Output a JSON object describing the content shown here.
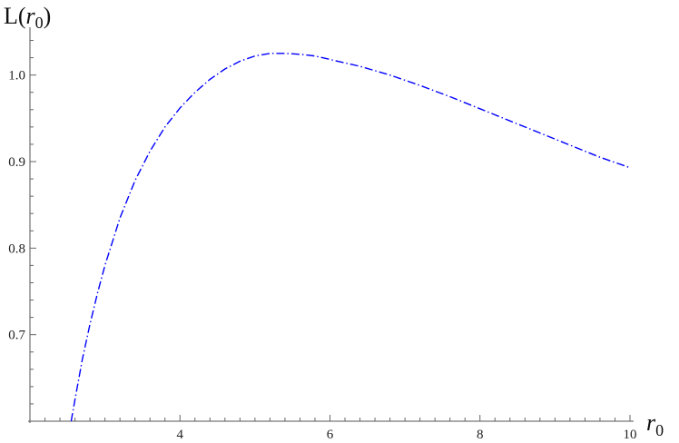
{
  "chart_data": {
    "type": "line",
    "ylabel_parts": {
      "prefix": "L(",
      "var": "r",
      "sub": "0",
      "suffix": ")"
    },
    "xlabel_parts": {
      "var": "r",
      "sub": "0"
    },
    "xlim": [
      2,
      10
    ],
    "ylim": [
      0.6,
      1.05
    ],
    "x_origin": 2,
    "y_origin": 0.6,
    "x_ticks": [
      4,
      6,
      8,
      10
    ],
    "x_ticklabels": [
      "4",
      "6",
      "8",
      "10"
    ],
    "y_ticks": [
      0.7,
      0.8,
      0.9,
      1.0
    ],
    "y_ticklabels": [
      "0.7",
      "0.8",
      "0.9",
      "1.0"
    ],
    "x_minor_step": 0.2,
    "y_minor_step": 0.02,
    "grid": false,
    "series": [
      {
        "color": "#0000ff",
        "style": "dash-dot",
        "points": [
          [
            2.55,
            0.6
          ],
          [
            2.6,
            0.625
          ],
          [
            2.7,
            0.672
          ],
          [
            2.8,
            0.712
          ],
          [
            2.9,
            0.748
          ],
          [
            3.0,
            0.78
          ],
          [
            3.2,
            0.835
          ],
          [
            3.4,
            0.878
          ],
          [
            3.6,
            0.912
          ],
          [
            3.8,
            0.94
          ],
          [
            4.0,
            0.962
          ],
          [
            4.2,
            0.98
          ],
          [
            4.4,
            0.995
          ],
          [
            4.6,
            1.007
          ],
          [
            4.8,
            1.016
          ],
          [
            5.0,
            1.022
          ],
          [
            5.2,
            1.025
          ],
          [
            5.4,
            1.025
          ],
          [
            5.6,
            1.024
          ],
          [
            5.8,
            1.022
          ],
          [
            6.0,
            1.018
          ],
          [
            6.4,
            1.01
          ],
          [
            6.8,
            1.0
          ],
          [
            7.2,
            0.988
          ],
          [
            7.6,
            0.975
          ],
          [
            8.0,
            0.961
          ],
          [
            8.4,
            0.947
          ],
          [
            8.8,
            0.933
          ],
          [
            9.2,
            0.919
          ],
          [
            9.6,
            0.905
          ],
          [
            10.0,
            0.893
          ]
        ]
      }
    ]
  }
}
